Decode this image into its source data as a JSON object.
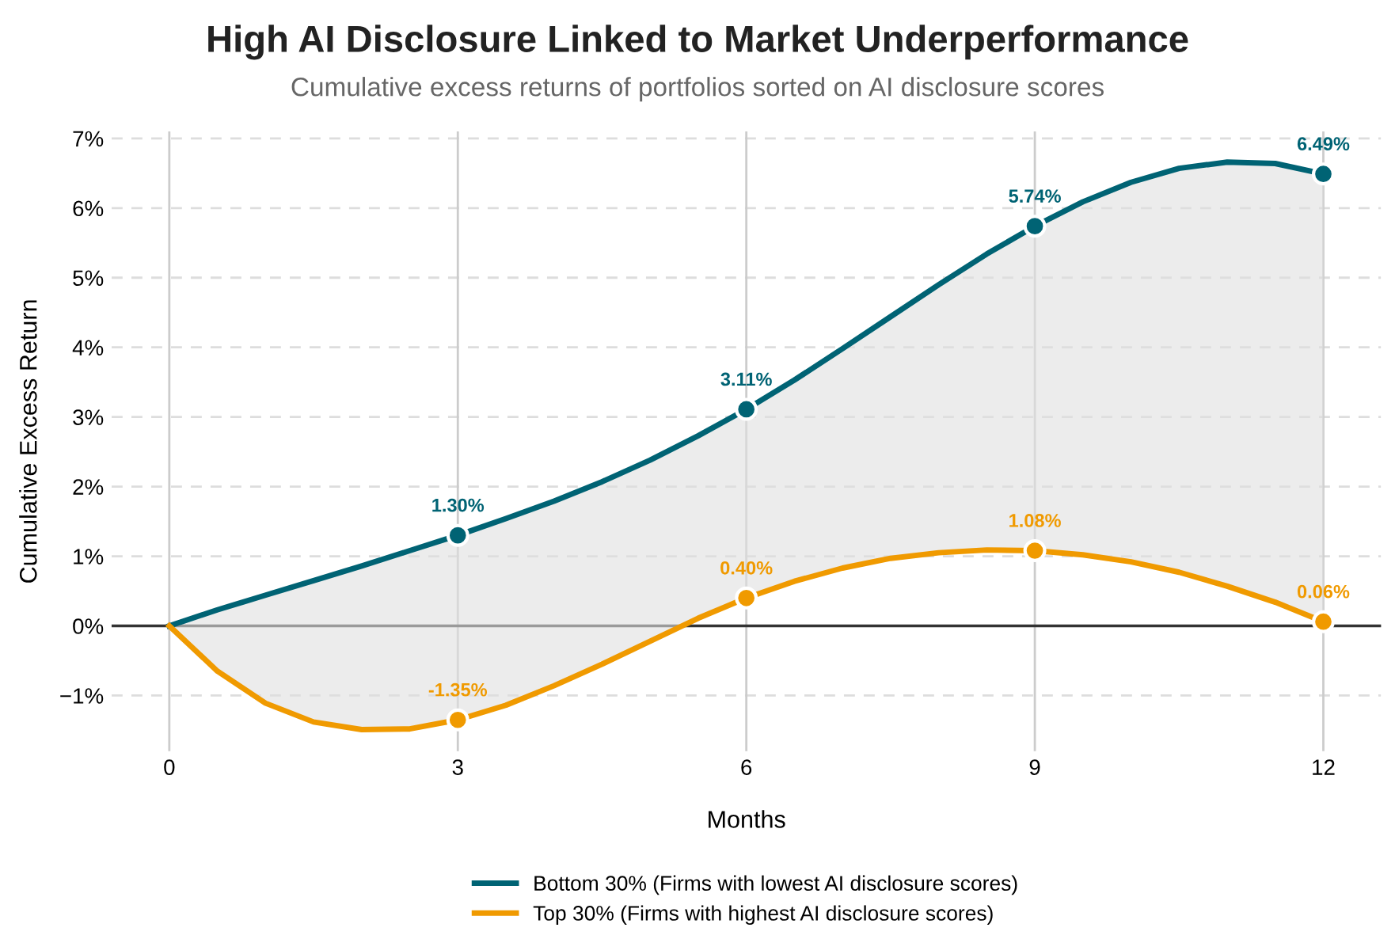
{
  "chart_data": {
    "type": "line",
    "title": "High AI Disclosure Linked to Market Underperformance",
    "subtitle": "Cumulative excess returns of portfolios sorted on AI disclosure scores",
    "xlabel": "Months",
    "ylabel": "Cumulative Excess Return",
    "x": [
      0,
      0.5,
      1,
      1.5,
      2,
      2.5,
      3,
      3.5,
      4,
      4.5,
      5,
      5.5,
      6,
      6.5,
      7,
      7.5,
      8,
      8.5,
      9,
      9.5,
      10,
      10.5,
      11,
      11.5,
      12
    ],
    "series": [
      {
        "name": "Bottom 30% (Firms with lowest AI disclosure scores)",
        "color": "#006374",
        "marker": "none",
        "values": [
          0.0,
          0.23,
          0.44,
          0.65,
          0.86,
          1.08,
          1.3,
          1.54,
          1.79,
          2.07,
          2.38,
          2.73,
          3.11,
          3.53,
          3.98,
          4.44,
          4.9,
          5.34,
          5.74,
          6.09,
          6.37,
          6.57,
          6.66,
          6.64,
          6.49
        ],
        "lower": [
          0.0,
          -0.65,
          -1.11,
          -1.38,
          -1.49,
          -1.48,
          -1.35,
          -1.14,
          -0.86,
          -0.55,
          -0.22,
          0.11,
          0.4,
          0.64,
          0.83,
          0.97,
          1.05,
          1.09,
          1.08,
          1.02,
          0.92,
          0.77,
          0.57,
          0.34,
          0.06
        ],
        "upper": [
          0.0,
          0.23,
          0.44,
          0.65,
          0.86,
          1.08,
          1.3,
          1.54,
          1.79,
          2.07,
          2.38,
          2.73,
          3.11,
          3.53,
          3.98,
          4.44,
          4.9,
          5.34,
          5.74,
          6.09,
          6.37,
          6.57,
          6.66,
          6.64,
          6.49
        ]
      },
      {
        "name": "Top 30% (Firms with highest AI disclosure scores)",
        "color": "#f09a00",
        "marker": "none",
        "values": [
          0.0,
          -0.65,
          -1.11,
          -1.38,
          -1.49,
          -1.48,
          -1.35,
          -1.14,
          -0.86,
          -0.55,
          -0.22,
          0.11,
          0.4,
          0.64,
          0.83,
          0.97,
          1.05,
          1.09,
          1.08,
          1.02,
          0.92,
          0.77,
          0.57,
          0.34,
          0.06
        ]
      },
      {
        "type": "scatter",
        "color": "#006374",
        "marker": "circle",
        "x": [
          3,
          6,
          9,
          12
        ],
        "values": [
          1.3,
          3.11,
          5.74,
          6.49
        ],
        "value_labels": [
          "1.30%",
          "3.11%",
          "5.74%",
          "6.49%"
        ]
      },
      {
        "type": "scatter",
        "color": "#f09a00",
        "marker": "circle",
        "x": [
          3,
          6,
          9,
          12
        ],
        "values": [
          -1.35,
          0.4,
          1.08,
          0.06
        ],
        "value_labels": [
          "-1.35%",
          "0.40%",
          "1.08%",
          "0.06%"
        ]
      }
    ],
    "xlim": [
      -0.6,
      12.6
    ],
    "xticks": [
      0,
      3,
      6,
      9,
      12
    ],
    "ylim": [
      -1.8,
      7.1
    ],
    "yticks": [
      {
        "value": -1,
        "label": "−1%"
      },
      {
        "value": 0,
        "label": "0%"
      },
      {
        "value": 1,
        "label": "1%"
      },
      {
        "value": 2,
        "label": "2%"
      },
      {
        "value": 3,
        "label": "3%"
      },
      {
        "value": 4,
        "label": "4%"
      },
      {
        "value": 5,
        "label": "5%"
      },
      {
        "value": 6,
        "label": "6%"
      },
      {
        "value": 7,
        "label": "7%"
      }
    ],
    "ref_lines": [
      {
        "axis": "y",
        "value": 0,
        "color": "#333333"
      }
    ],
    "grid": true,
    "legend": "bottom",
    "line_style": "solid"
  }
}
